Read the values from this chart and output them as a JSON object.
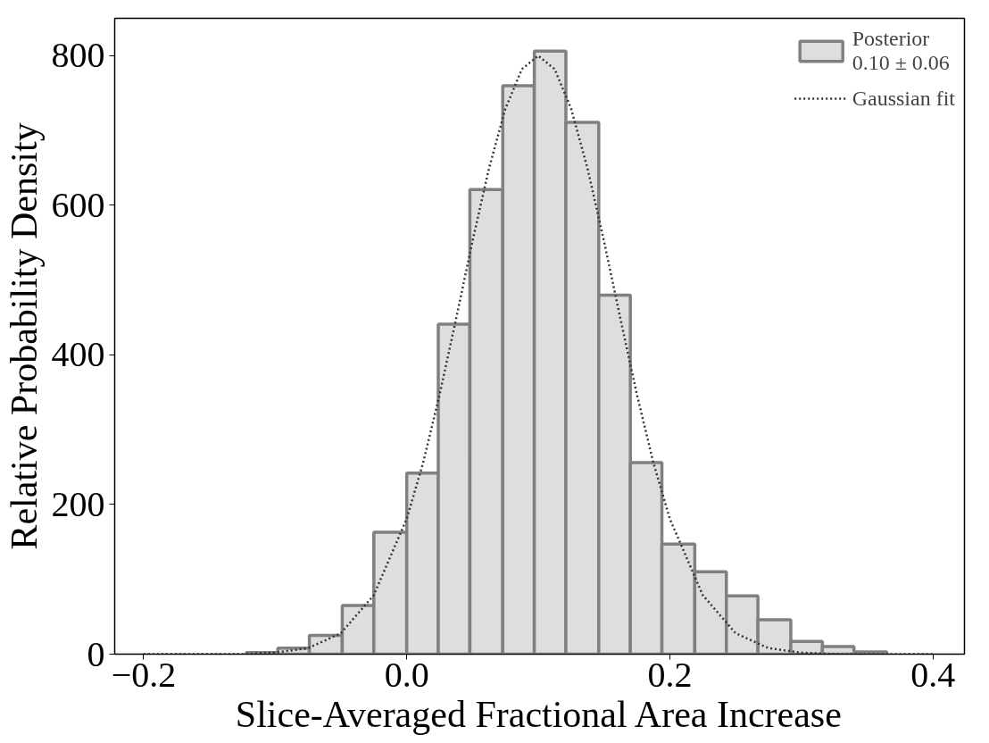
{
  "chart_data": {
    "type": "histogram",
    "xlabel": "Slice-Averaged Fractional Area Increase",
    "ylabel": "Relative Probability Density",
    "bins": [
      -0.122,
      -0.098,
      -0.074,
      -0.049,
      -0.025,
      0.0,
      0.024,
      0.048,
      0.073,
      0.097,
      0.121,
      0.146,
      0.17,
      0.194,
      0.219,
      0.243,
      0.267,
      0.292,
      0.316,
      0.34,
      0.365
    ],
    "series": [
      {
        "name": "Posterior\n0.10 ± 0.06",
        "color": "#dedede",
        "values": [
          2,
          8,
          25,
          65,
          163,
          242,
          441,
          621,
          760,
          806,
          711,
          480,
          256,
          147,
          110,
          78,
          46,
          17,
          10,
          3
        ]
      },
      {
        "name": "Gaussian fit",
        "type": "line",
        "color": "#333333",
        "line_style": "dotted",
        "x": [
          -0.2,
          -0.125,
          -0.1,
          -0.075,
          -0.05,
          -0.025,
          0.0,
          0.0125,
          0.025,
          0.0375,
          0.05,
          0.0625,
          0.075,
          0.0875,
          0.1,
          0.1125,
          0.125,
          0.1375,
          0.15,
          0.1625,
          0.175,
          0.1875,
          0.2,
          0.225,
          0.25,
          0.275,
          0.3,
          0.325,
          0.4
        ],
        "values": [
          0,
          0,
          2,
          8,
          28,
          79,
          181,
          256,
          347,
          448,
          552,
          649,
          729,
          782,
          800,
          782,
          729,
          649,
          552,
          448,
          347,
          256,
          181,
          79,
          28,
          8,
          2,
          0,
          0
        ]
      }
    ],
    "xlim": [
      -0.222,
      0.424
    ],
    "ylim": [
      0,
      850
    ],
    "xticks": [
      {
        "value": -0.2,
        "label": "−0.2"
      },
      {
        "value": 0.0,
        "label": "0.0"
      },
      {
        "value": 0.2,
        "label": "0.2"
      },
      {
        "value": 0.4,
        "label": "0.4"
      }
    ],
    "yticks": [
      0,
      200,
      400,
      600,
      800
    ],
    "grid": false,
    "legend": "top right"
  }
}
